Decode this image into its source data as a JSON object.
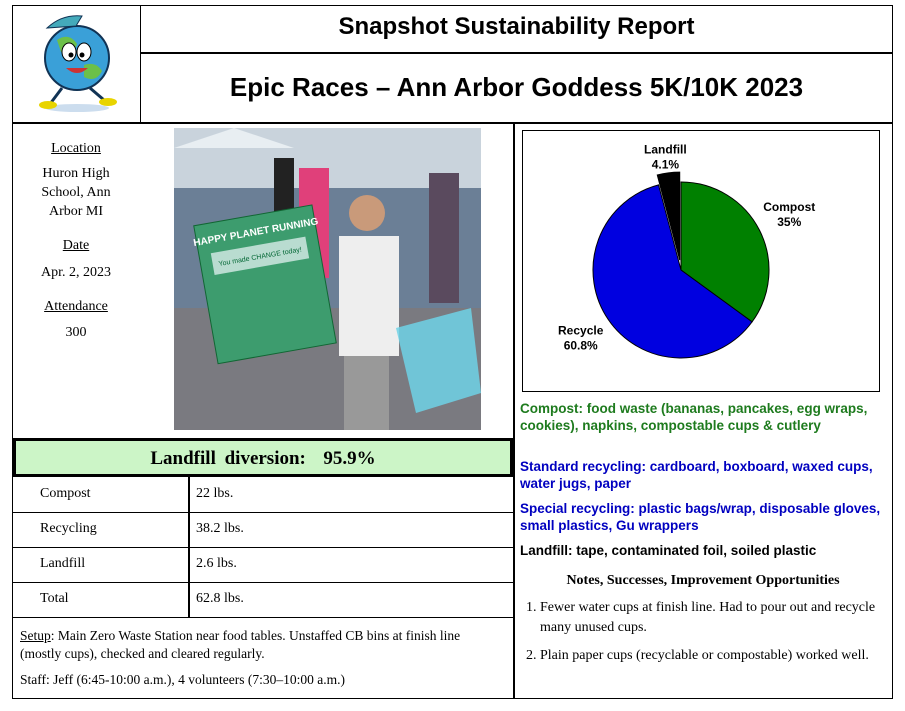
{
  "header": {
    "title": "Snapshot Sustainability Report",
    "subtitle": "Epic Races – Ann Arbor Goddess 5K/10K 2023"
  },
  "event": {
    "location_label": "Location",
    "location": "Huron High School, Ann Arbor MI",
    "date_label": "Date",
    "date": "Apr. 2, 2023",
    "attendance_label": "Attendance",
    "attendance": "300"
  },
  "photo": {
    "sign_title": "HAPPY PLANET RUNNING",
    "sign_text": "You made CHANGE today!"
  },
  "diversion": {
    "label": "Landfill diversion:",
    "value": "95.9%"
  },
  "table": {
    "rows": [
      [
        "Compost",
        "22 lbs."
      ],
      [
        "Recycling",
        "38.2 lbs."
      ],
      [
        "Landfill",
        "2.6 lbs."
      ],
      [
        "Total",
        "62.8 lbs."
      ]
    ]
  },
  "setup": {
    "label": "Setup",
    "text": ": Main Zero Waste Station near food tables. Unstaffed CB bins at finish line (mostly cups), checked and cleared regularly."
  },
  "staff": "Staff: Jeff (6:45-10:00 a.m.), 4 volunteers (7:30–10:00 a.m.)",
  "chart_data": {
    "type": "pie",
    "categories": [
      "Compost",
      "Recycle",
      "Landfill"
    ],
    "values": [
      35,
      60.8,
      4.1
    ],
    "value_labels": [
      "35%",
      "60.8%",
      "4.1%"
    ],
    "colors": [
      "#008000",
      "#0000e0",
      "#000000"
    ],
    "exploded": [
      false,
      false,
      true
    ]
  },
  "descriptions": [
    {
      "text": "Compost: food waste (bananas, pancakes, egg wraps, cookies), napkins, compostable cups & cutlery",
      "color": "#1e7b1e"
    },
    {
      "text": "Standard recycling: cardboard, boxboard, waxed cups, water jugs, paper",
      "color": "#0000c0"
    },
    {
      "text": "Special recycling: plastic bags/wrap, disposable gloves, small plastics, Gu wrappers",
      "color": "#0000c0"
    },
    {
      "text": "Landfill: tape, contaminated foil, soiled plastic",
      "color": "#000000"
    }
  ],
  "notes": {
    "title": "Notes, Successes, Improvement Opportunities",
    "items": [
      "Fewer water cups at finish line. Had to pour out and recycle many unused cups.",
      "Plain paper cups (recyclable or compostable) worked well."
    ]
  }
}
